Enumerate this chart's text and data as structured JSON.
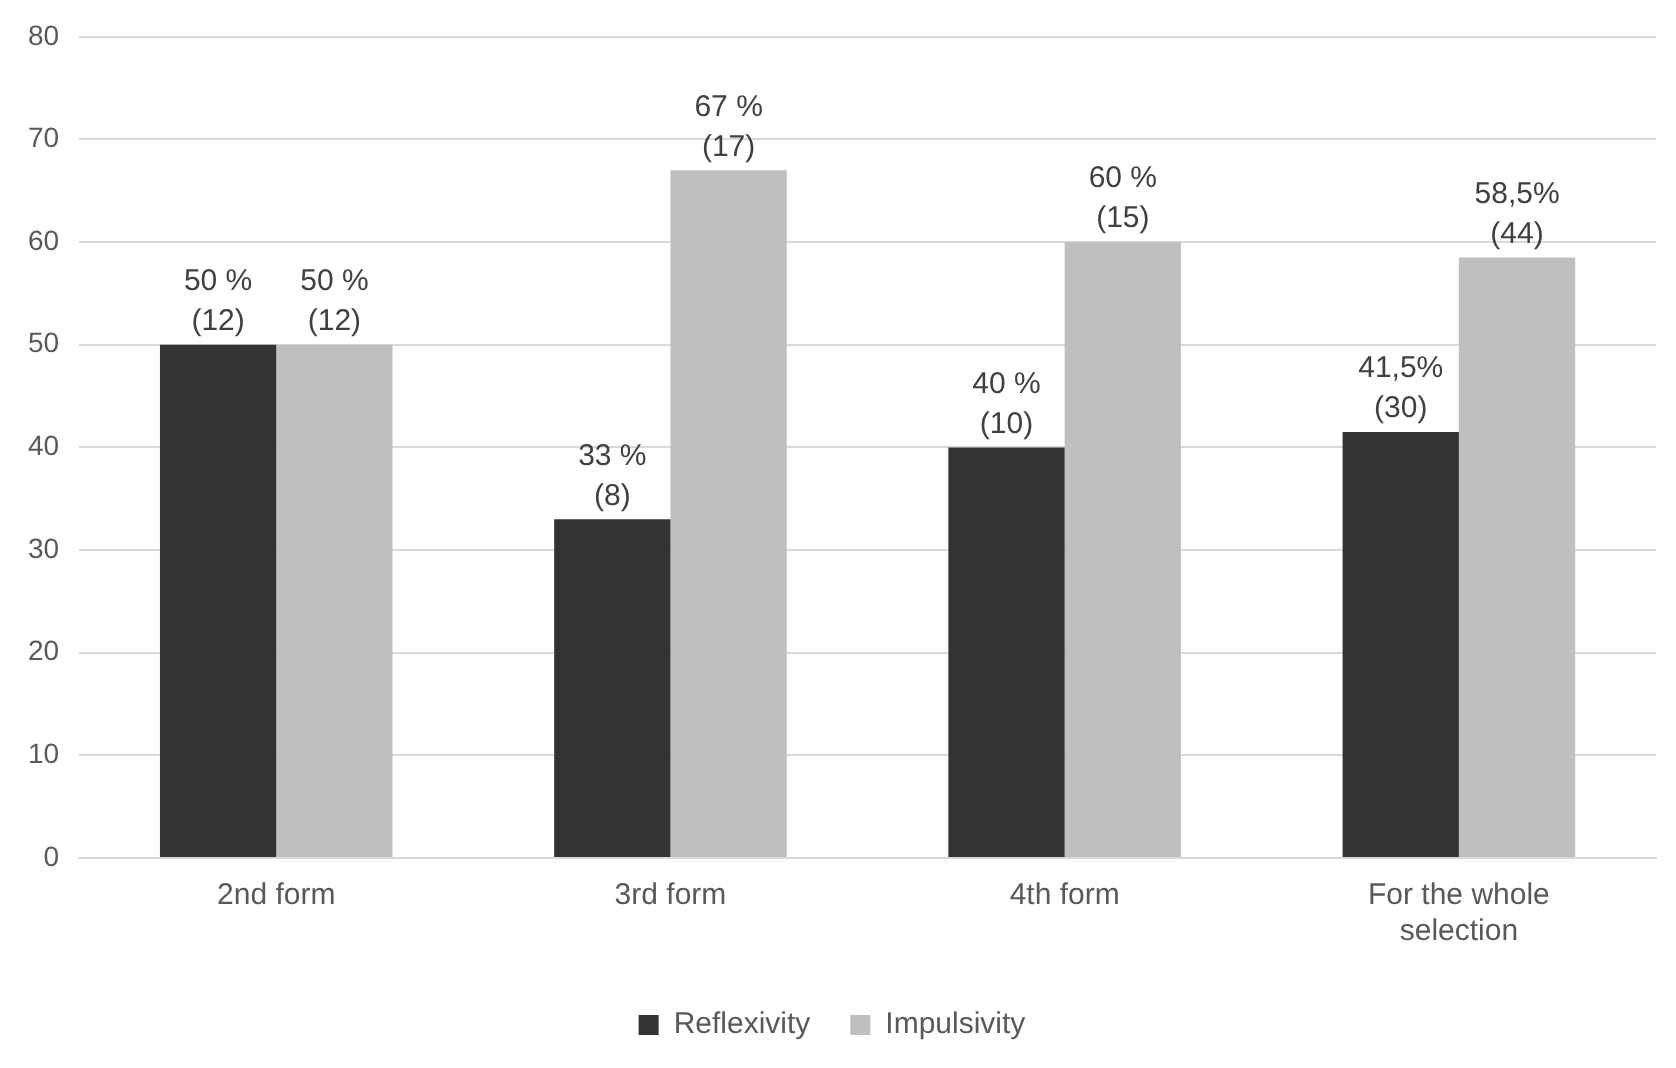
{
  "chart_data": {
    "type": "bar",
    "categories": [
      "2nd form",
      "3rd form",
      "4th form",
      "For the whole selection"
    ],
    "series": [
      {
        "name": "Reflexivity",
        "color": "#333333",
        "values": [
          50,
          33,
          40,
          41.5
        ],
        "value_labels": [
          "50 %\n(12)",
          "33 %\n(8)",
          "40 %\n(10)",
          "41,5%\n(30)"
        ]
      },
      {
        "name": "Impulsivity",
        "color": "#bfbfbf",
        "values": [
          50,
          67,
          60,
          58.5
        ],
        "value_labels": [
          "50 %\n(12)",
          "67 %\n(17)",
          "60 %\n(15)",
          "58,5%\n(44)"
        ]
      }
    ],
    "ylim": [
      0,
      80
    ],
    "yticks": [
      0,
      10,
      20,
      30,
      40,
      50,
      60,
      70,
      80
    ],
    "grid": "y",
    "legend": "bottom"
  }
}
